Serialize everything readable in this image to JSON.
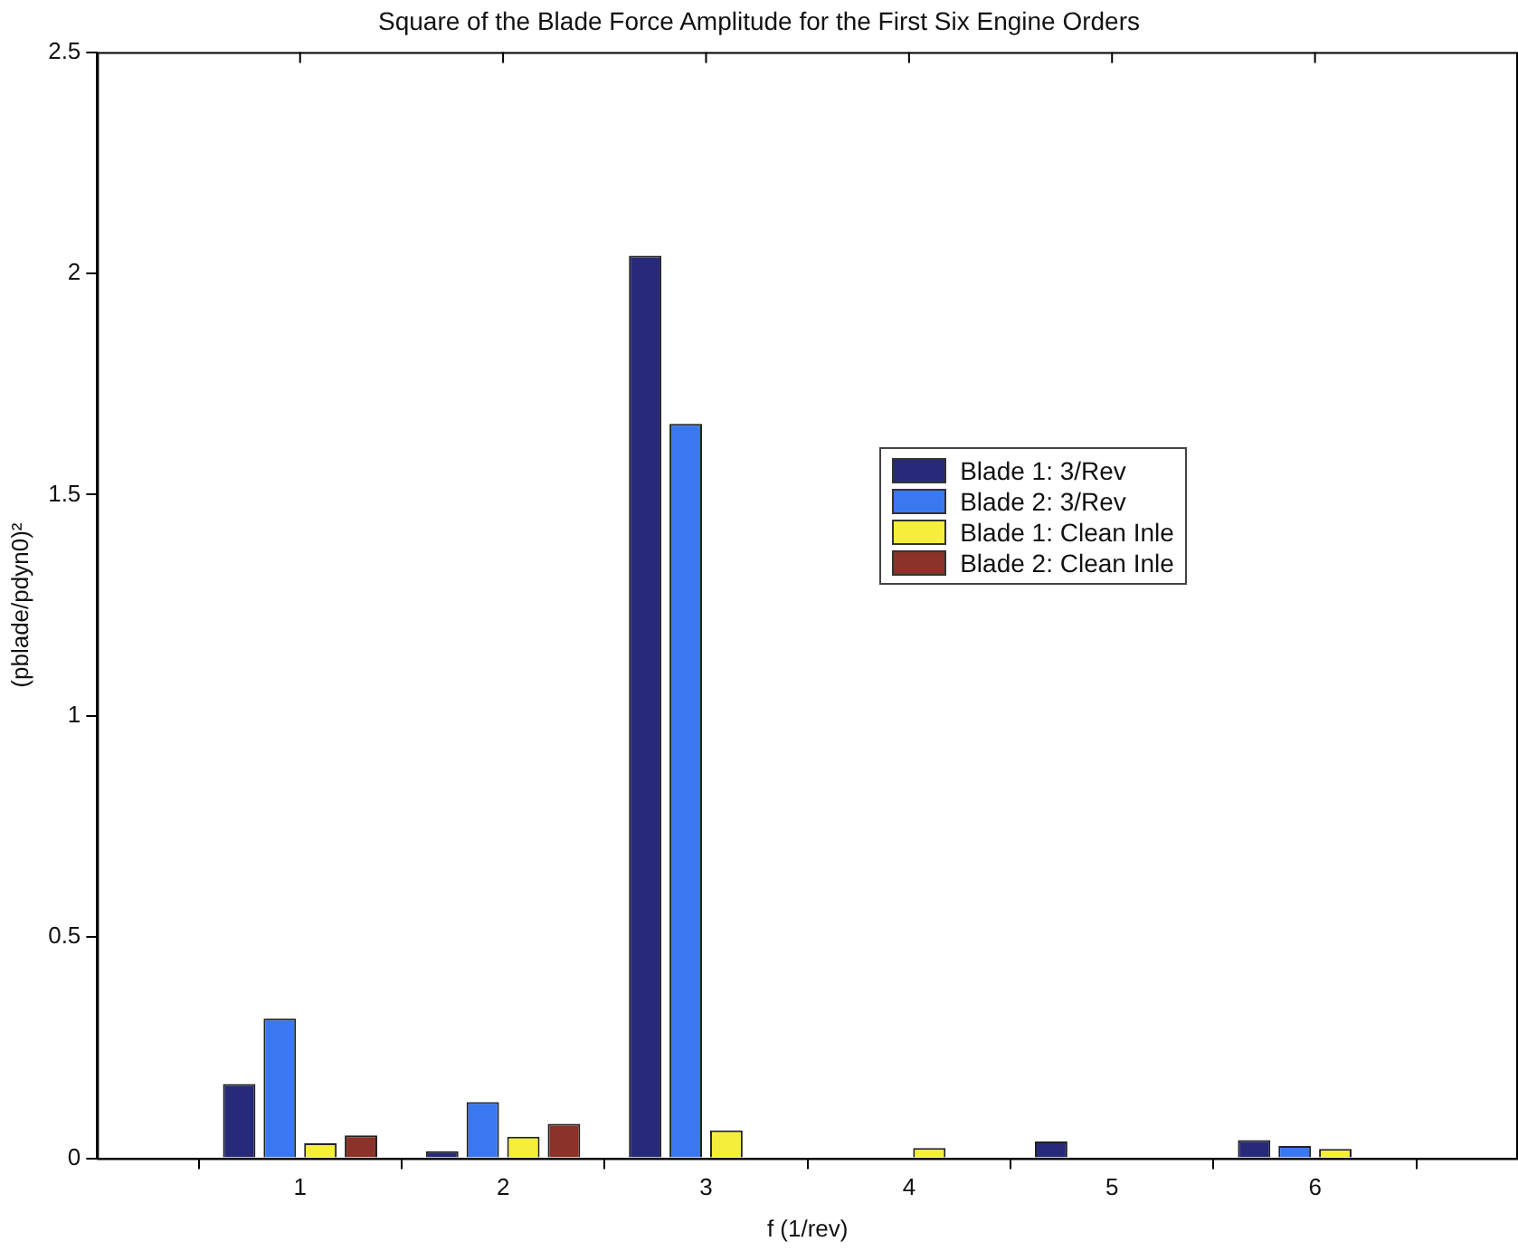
{
  "chart_data": {
    "type": "bar",
    "title": "Square of the Blade Force Amplitude for the First Six Engine Orders",
    "xlabel": "f (1/rev)",
    "ylabel": "(pblade/pdyn0)²",
    "x": [
      1,
      2,
      3,
      4,
      5,
      6
    ],
    "series": [
      {
        "name": "Blade 1: 3/Rev",
        "color": "#262a78",
        "values": [
          0.168,
          0.016,
          2.04,
          null,
          0.038,
          0.041
        ]
      },
      {
        "name": "Blade 2: 3/Rev",
        "color": "#3a78f0",
        "values": [
          0.316,
          0.127,
          1.66,
          null,
          null,
          0.028
        ]
      },
      {
        "name": "Blade 1: Clean Inle",
        "color": "#f5ee3a",
        "values": [
          0.034,
          0.049,
          0.063,
          0.023,
          null,
          0.021
        ]
      },
      {
        "name": "Blade 2: Clean Inle",
        "color": "#8b3328",
        "values": [
          0.052,
          0.078,
          null,
          null,
          null,
          null
        ]
      }
    ],
    "xlim": [
      0,
      7
    ],
    "xticks": [
      1,
      2,
      3,
      4,
      5,
      6
    ],
    "ylim": [
      0,
      2.5
    ],
    "yticks": [
      0,
      0.5,
      1,
      1.5,
      2,
      2.5
    ],
    "grid": false,
    "legend": "right"
  }
}
